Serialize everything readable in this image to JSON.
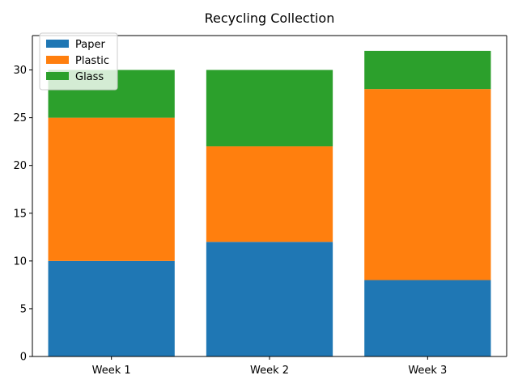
{
  "chart_data": {
    "type": "bar",
    "stacked": true,
    "title": "Recycling Collection",
    "xlabel": "",
    "ylabel": "",
    "categories": [
      "Week 1",
      "Week 2",
      "Week 3"
    ],
    "series": [
      {
        "name": "Paper",
        "values": [
          10,
          12,
          8
        ],
        "color": "#1f77b4"
      },
      {
        "name": "Plastic",
        "values": [
          15,
          10,
          20
        ],
        "color": "#ff7f0e"
      },
      {
        "name": "Glass",
        "values": [
          5,
          8,
          4
        ],
        "color": "#2ca02c"
      }
    ],
    "ylim": [
      0,
      33.6
    ],
    "yticks": [
      0,
      5,
      10,
      15,
      20,
      25,
      30
    ],
    "grid": false,
    "legend_position": "top-left"
  }
}
